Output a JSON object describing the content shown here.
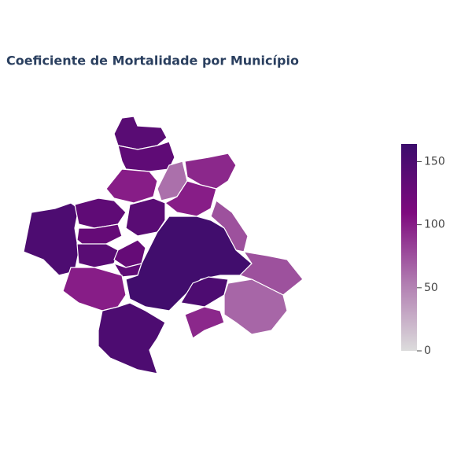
{
  "chart_data": {
    "type": "choropleth",
    "title": "Coeficiente de Mortalidade por Município",
    "values": [
      140,
      135,
      100,
      60,
      95,
      100,
      75,
      150,
      135,
      130,
      140,
      140,
      130,
      135,
      100,
      160,
      150,
      75,
      65,
      95,
      150
    ],
    "zlim": [
      0,
      164
    ],
    "zticks": [
      0,
      50,
      100,
      150
    ],
    "colors": [
      "#dcdcdc",
      "#b07bb0",
      "#7e0a7e",
      "#3c0d6c"
    ]
  }
}
